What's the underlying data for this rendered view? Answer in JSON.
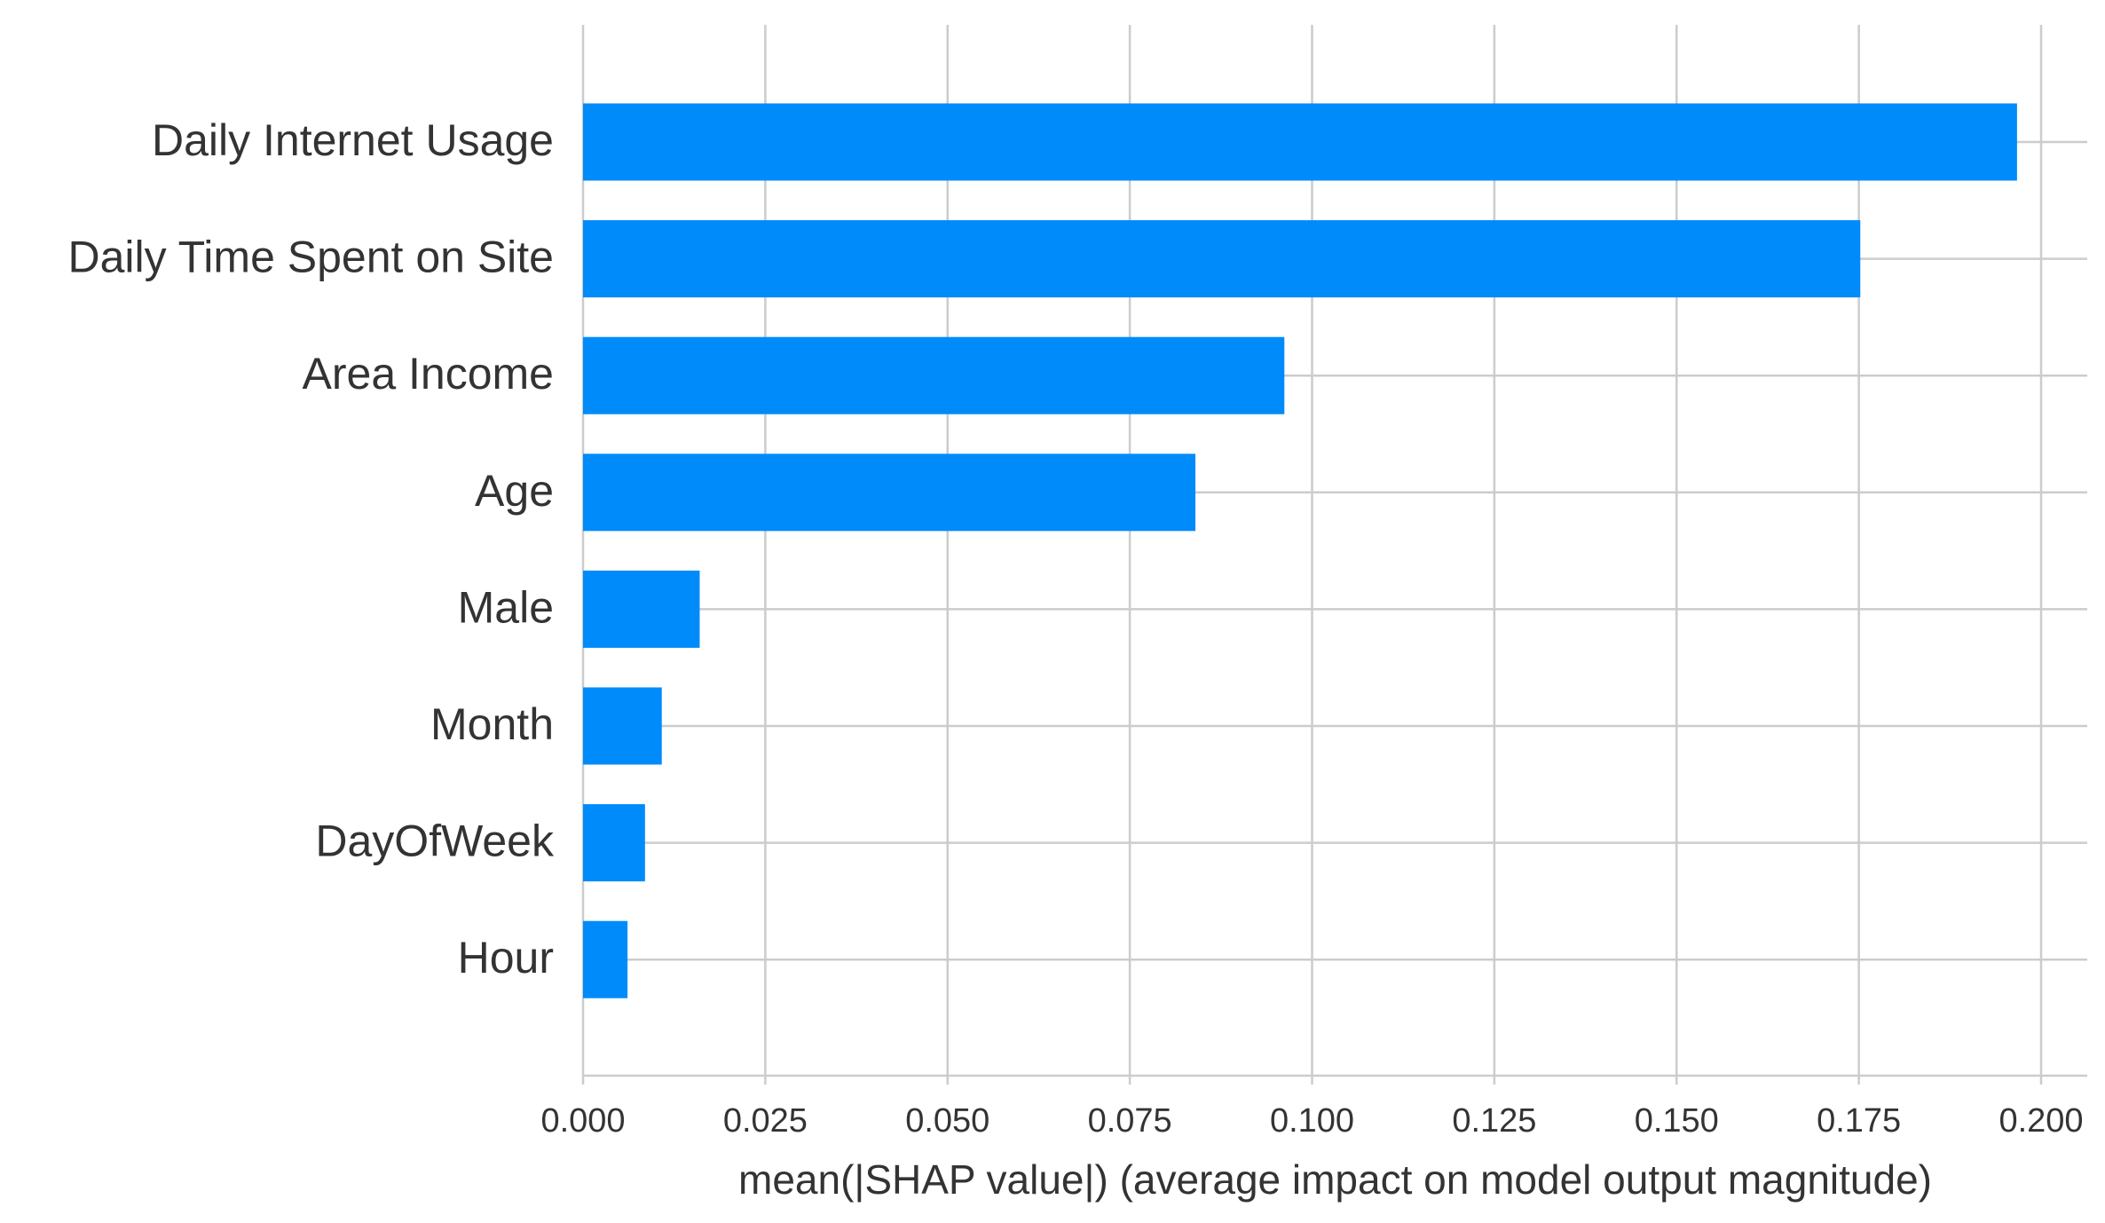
{
  "chart_data": {
    "type": "bar",
    "orientation": "horizontal",
    "categories": [
      "Daily Internet Usage",
      "Daily Time Spent on Site",
      "Area Income",
      "Age",
      "Male",
      "Month",
      "DayOfWeek",
      "Hour"
    ],
    "values": [
      0.1967,
      0.1752,
      0.0962,
      0.084,
      0.016,
      0.0108,
      0.0085,
      0.0061
    ],
    "xlabel": "mean(|SHAP value|) (average impact on model output magnitude)",
    "ylabel": "",
    "xlim": [
      0.0,
      0.2
    ],
    "xticks": [
      "0.000",
      "0.025",
      "0.050",
      "0.075",
      "0.100",
      "0.125",
      "0.150",
      "0.175",
      "0.200"
    ],
    "grid": true,
    "bar_color": "#008bfb",
    "grid_color": "#cccccc",
    "text_color": "#333333"
  }
}
